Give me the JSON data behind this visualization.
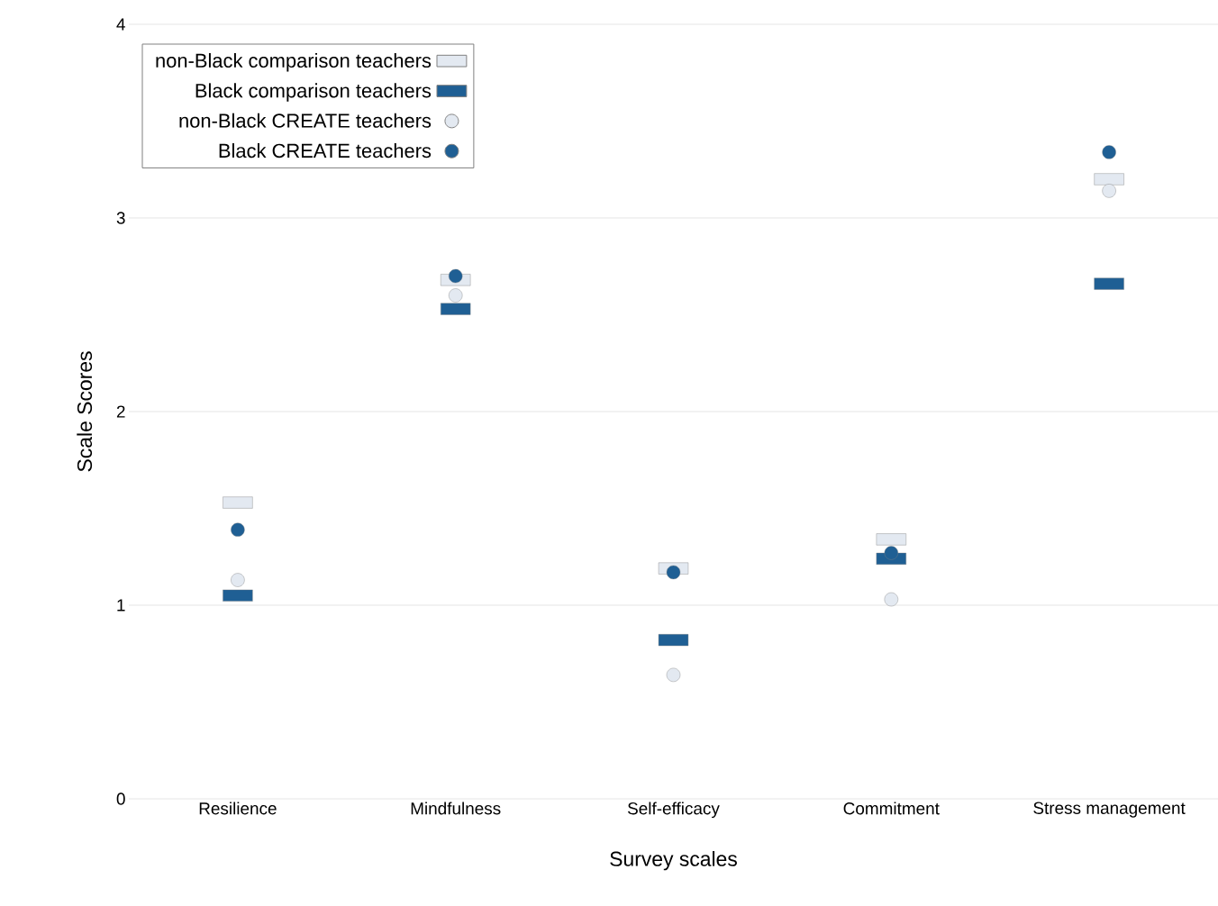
{
  "chart_data": {
    "type": "scatter",
    "xlabel": "Survey scales",
    "ylabel": "Scale Scores",
    "categories": [
      "Resilience",
      "Mindfulness",
      "Self-efficacy",
      "Commitment",
      "Stress management"
    ],
    "ylim": [
      0,
      4
    ],
    "yticks": [
      0,
      1,
      2,
      3,
      4
    ],
    "grid": "y",
    "legend": "top left",
    "series": [
      {
        "name": "non-Black comparison teachers",
        "color": "#e3e9f1",
        "marker": "square",
        "values": [
          1.53,
          2.68,
          1.19,
          1.34,
          3.2
        ]
      },
      {
        "name": "Black comparison teachers",
        "color": "#1f5f94",
        "marker": "square",
        "values": [
          1.05,
          2.53,
          0.82,
          1.24,
          2.66
        ]
      },
      {
        "name": "non-Black CREATE teachers",
        "color": "#e3e9f1",
        "marker": "circle",
        "values": [
          1.13,
          2.6,
          0.64,
          1.03,
          3.14
        ]
      },
      {
        "name": "Black CREATE teachers",
        "color": "#1f5f94",
        "marker": "circle",
        "values": [
          1.39,
          2.7,
          1.17,
          1.27,
          3.34
        ]
      }
    ]
  }
}
